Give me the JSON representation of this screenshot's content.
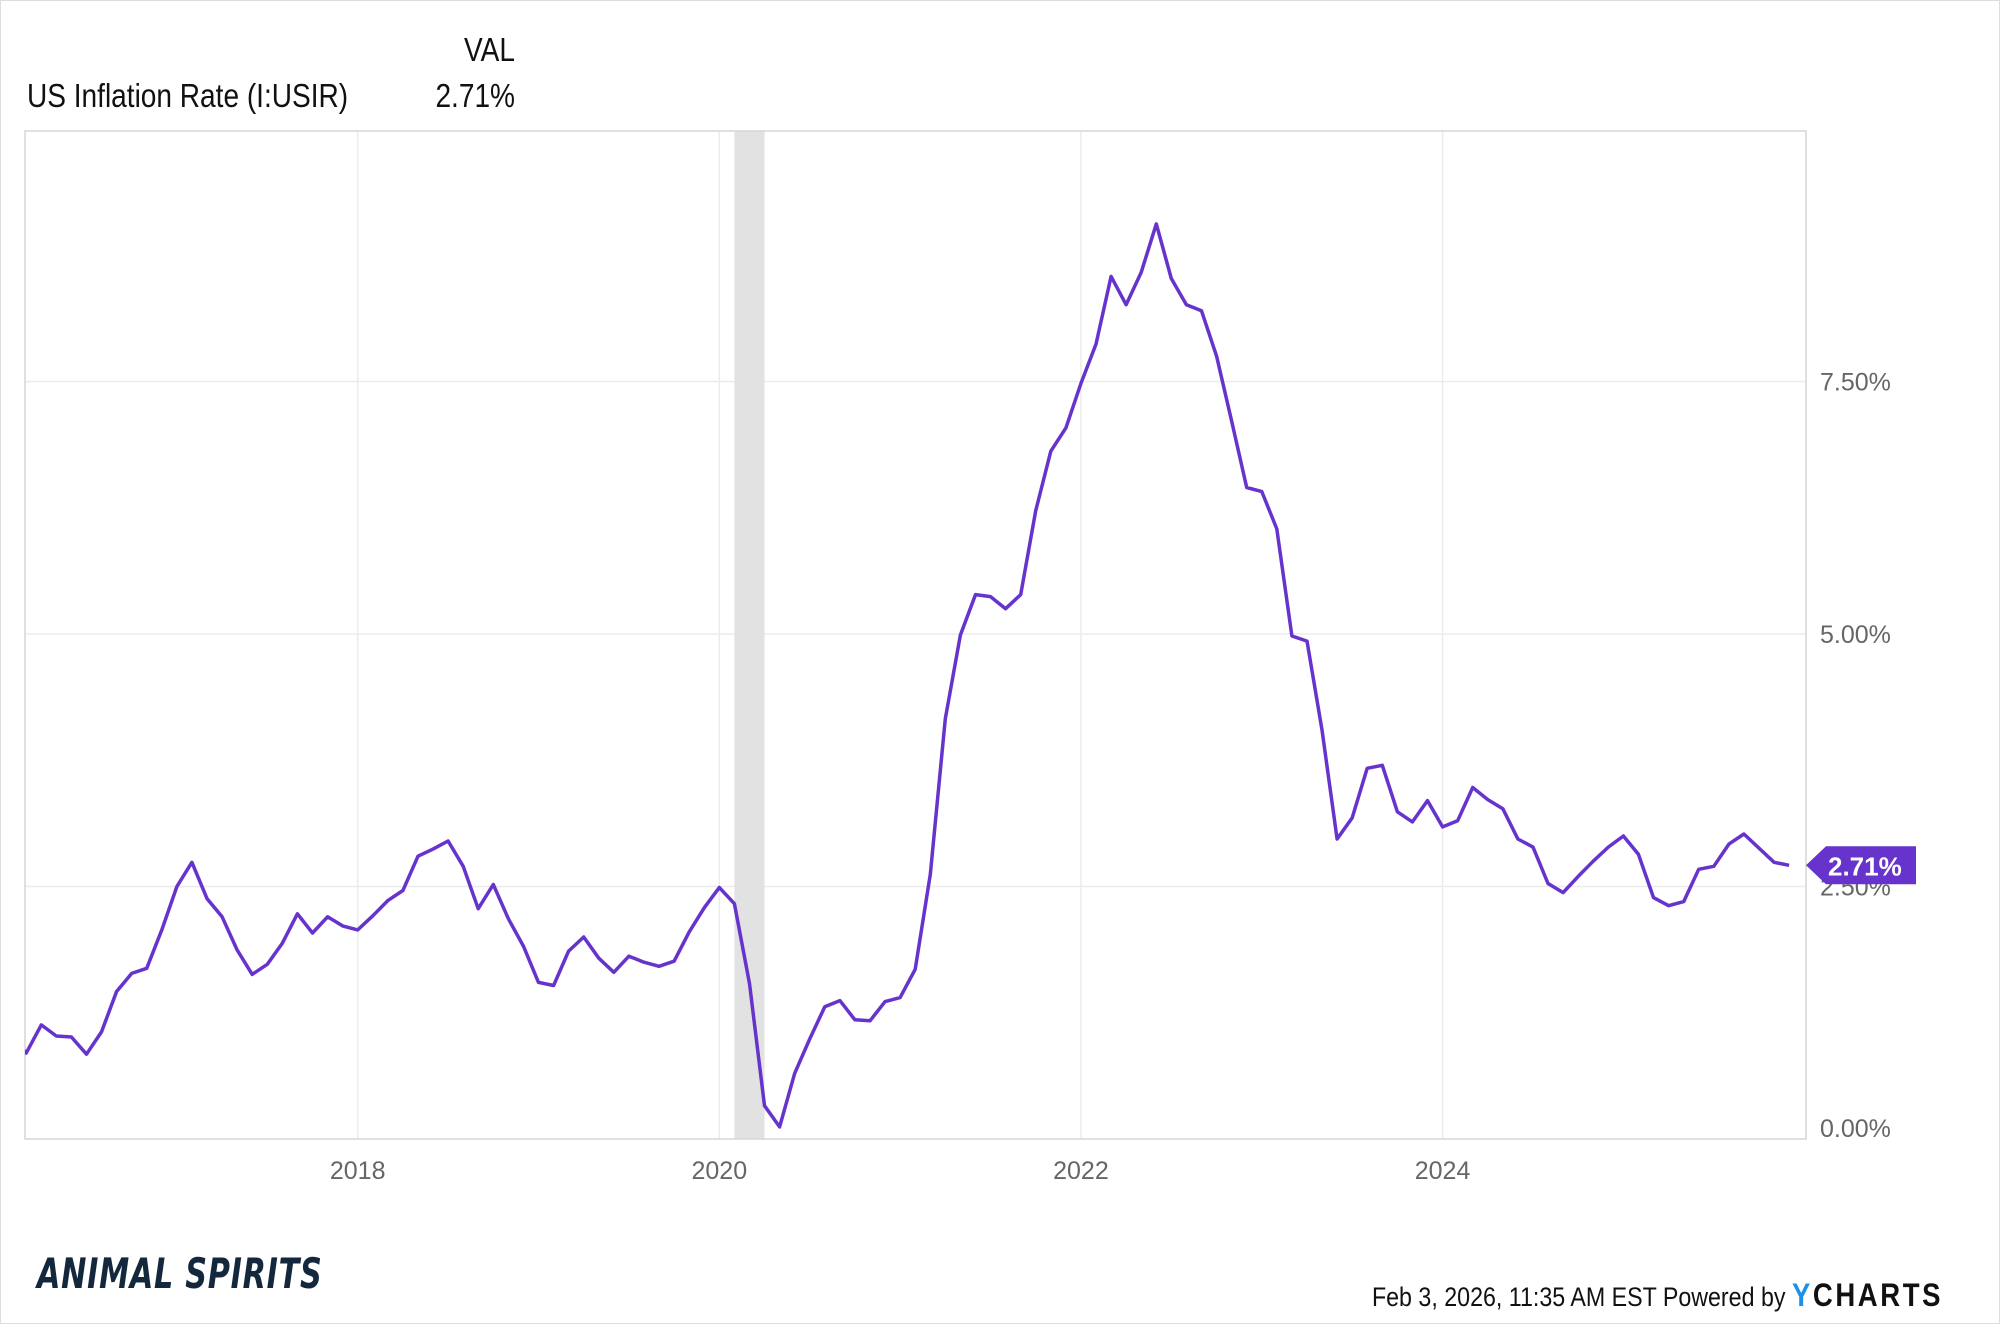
{
  "legend": {
    "column_header": "VAL",
    "series_name": "US Inflation Rate (I:USIR)",
    "series_value": "2.71%"
  },
  "footer": {
    "timestamp": "Feb 3, 2026, 11:35 AM EST",
    "powered_by": "Powered by",
    "brand_y": "Y",
    "brand_rest": "CHARTS",
    "logo": "ANIMAL SPIRITS"
  },
  "colors": {
    "line": "#6633cc",
    "recession": "#e2e2e2",
    "grid": "#ebebeb",
    "axis_text": "#666666"
  },
  "chart_data": {
    "type": "line",
    "title": "US Inflation Rate (I:USIR)",
    "xlabel": "",
    "ylabel": "",
    "x_ticks": [
      "2018",
      "2020",
      "2022",
      "2024"
    ],
    "x_tick_values": [
      2018,
      2020,
      2022,
      2024
    ],
    "y_ticks": [
      "0.00%",
      "2.50%",
      "5.00%",
      "7.50%"
    ],
    "y_tick_values": [
      0,
      2.5,
      5,
      7.5
    ],
    "xlim": [
      2016.16,
      2026.01
    ],
    "ylim": [
      0,
      9.98
    ],
    "grid": true,
    "last_value_label": "2.71%",
    "recession": {
      "start": "2020-02",
      "end": "2020-04"
    },
    "series": [
      {
        "name": "US Inflation Rate",
        "points": [
          [
            "2016-02",
            1.02
          ],
          [
            "2016-03",
            0.85
          ],
          [
            "2016-04",
            1.13
          ],
          [
            "2016-05",
            1.02
          ],
          [
            "2016-06",
            1.01
          ],
          [
            "2016-07",
            0.84
          ],
          [
            "2016-08",
            1.06
          ],
          [
            "2016-09",
            1.46
          ],
          [
            "2016-10",
            1.64
          ],
          [
            "2016-11",
            1.69
          ],
          [
            "2016-12",
            2.07
          ],
          [
            "2017-01",
            2.5
          ],
          [
            "2017-02",
            2.74
          ],
          [
            "2017-03",
            2.38
          ],
          [
            "2017-04",
            2.2
          ],
          [
            "2017-05",
            1.87
          ],
          [
            "2017-06",
            1.63
          ],
          [
            "2017-07",
            1.73
          ],
          [
            "2017-08",
            1.94
          ],
          [
            "2017-09",
            2.23
          ],
          [
            "2017-10",
            2.04
          ],
          [
            "2017-11",
            2.2
          ],
          [
            "2017-12",
            2.11
          ],
          [
            "2018-01",
            2.07
          ],
          [
            "2018-02",
            2.21
          ],
          [
            "2018-03",
            2.36
          ],
          [
            "2018-04",
            2.46
          ],
          [
            "2018-05",
            2.8
          ],
          [
            "2018-06",
            2.87
          ],
          [
            "2018-07",
            2.95
          ],
          [
            "2018-08",
            2.7
          ],
          [
            "2018-09",
            2.28
          ],
          [
            "2018-10",
            2.52
          ],
          [
            "2018-11",
            2.18
          ],
          [
            "2018-12",
            1.91
          ],
          [
            "2019-01",
            1.55
          ],
          [
            "2019-02",
            1.52
          ],
          [
            "2019-03",
            1.86
          ],
          [
            "2019-04",
            2.0
          ],
          [
            "2019-05",
            1.79
          ],
          [
            "2019-06",
            1.65
          ],
          [
            "2019-07",
            1.81
          ],
          [
            "2019-08",
            1.75
          ],
          [
            "2019-09",
            1.71
          ],
          [
            "2019-10",
            1.76
          ],
          [
            "2019-11",
            2.05
          ],
          [
            "2019-12",
            2.29
          ],
          [
            "2020-01",
            2.49
          ],
          [
            "2020-02",
            2.33
          ],
          [
            "2020-03",
            1.54
          ],
          [
            "2020-04",
            0.33
          ],
          [
            "2020-05",
            0.12
          ],
          [
            "2020-06",
            0.65
          ],
          [
            "2020-07",
            0.99
          ],
          [
            "2020-08",
            1.31
          ],
          [
            "2020-09",
            1.37
          ],
          [
            "2020-10",
            1.18
          ],
          [
            "2020-11",
            1.17
          ],
          [
            "2020-12",
            1.36
          ],
          [
            "2021-01",
            1.4
          ],
          [
            "2021-02",
            1.68
          ],
          [
            "2021-03",
            2.62
          ],
          [
            "2021-04",
            4.16
          ],
          [
            "2021-05",
            4.99
          ],
          [
            "2021-06",
            5.39
          ],
          [
            "2021-07",
            5.37
          ],
          [
            "2021-08",
            5.25
          ],
          [
            "2021-09",
            5.39
          ],
          [
            "2021-10",
            6.22
          ],
          [
            "2021-11",
            6.81
          ],
          [
            "2021-12",
            7.04
          ],
          [
            "2022-01",
            7.48
          ],
          [
            "2022-02",
            7.87
          ],
          [
            "2022-03",
            8.54
          ],
          [
            "2022-04",
            8.26
          ],
          [
            "2022-05",
            8.58
          ],
          [
            "2022-06",
            9.06
          ],
          [
            "2022-07",
            8.52
          ],
          [
            "2022-08",
            8.26
          ],
          [
            "2022-09",
            8.2
          ],
          [
            "2022-10",
            7.75
          ],
          [
            "2022-11",
            7.11
          ],
          [
            "2022-12",
            6.45
          ],
          [
            "2023-01",
            6.41
          ],
          [
            "2023-02",
            6.04
          ],
          [
            "2023-03",
            4.98
          ],
          [
            "2023-04",
            4.93
          ],
          [
            "2023-05",
            4.05
          ],
          [
            "2023-06",
            2.97
          ],
          [
            "2023-07",
            3.18
          ],
          [
            "2023-08",
            3.67
          ],
          [
            "2023-09",
            3.7
          ],
          [
            "2023-10",
            3.24
          ],
          [
            "2023-11",
            3.14
          ],
          [
            "2023-12",
            3.35
          ],
          [
            "2024-01",
            3.09
          ],
          [
            "2024-02",
            3.15
          ],
          [
            "2024-03",
            3.48
          ],
          [
            "2024-04",
            3.36
          ],
          [
            "2024-05",
            3.27
          ],
          [
            "2024-06",
            2.97
          ],
          [
            "2024-07",
            2.89
          ],
          [
            "2024-08",
            2.53
          ],
          [
            "2024-09",
            2.44
          ],
          [
            "2024-10",
            2.6
          ],
          [
            "2024-11",
            2.75
          ],
          [
            "2024-12",
            2.89
          ],
          [
            "2025-01",
            3.0
          ],
          [
            "2025-02",
            2.82
          ],
          [
            "2025-03",
            2.39
          ],
          [
            "2025-04",
            2.31
          ],
          [
            "2025-05",
            2.35
          ],
          [
            "2025-06",
            2.67
          ],
          [
            "2025-07",
            2.7
          ],
          [
            "2025-08",
            2.92
          ],
          [
            "2025-09",
            3.02
          ],
          [
            "2025-11",
            2.74
          ],
          [
            "2025-12",
            2.71
          ]
        ]
      }
    ]
  }
}
